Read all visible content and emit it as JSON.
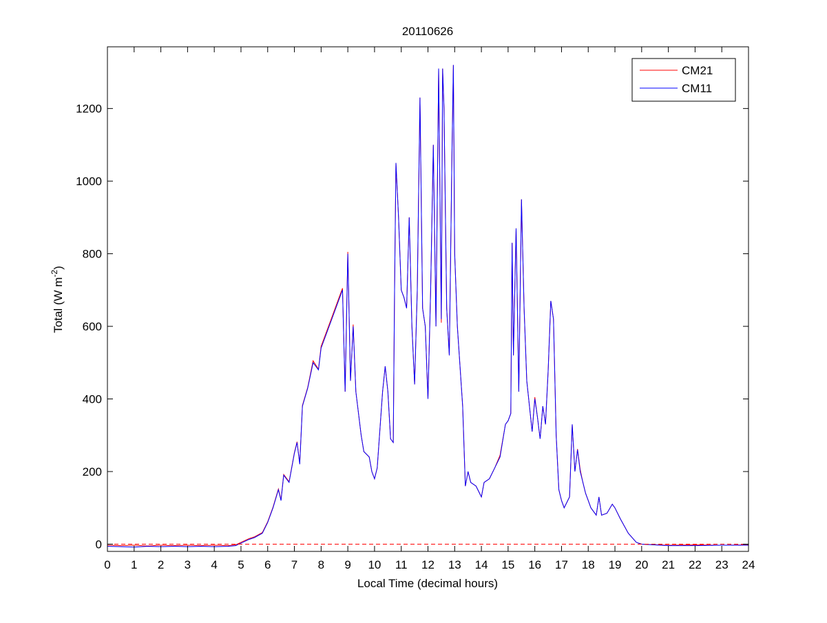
{
  "chart_data": {
    "type": "line",
    "title": "20110626",
    "xlabel": "Local Time (decimal hours)",
    "ylabel": "Total (W m",
    "ylabel_sup": "-2",
    "ylabel_end": ")",
    "xlim": [
      0,
      24
    ],
    "ylim": [
      -20,
      1370
    ],
    "xticks": [
      0,
      1,
      2,
      3,
      4,
      5,
      6,
      7,
      8,
      9,
      10,
      11,
      12,
      13,
      14,
      15,
      16,
      17,
      18,
      19,
      20,
      21,
      22,
      23,
      24
    ],
    "yticks": [
      0,
      200,
      400,
      600,
      800,
      1000,
      1200
    ],
    "grid": false,
    "legend_position": "top-right",
    "reference_line": {
      "y": 0,
      "style": "dashed",
      "color": "#ff0000"
    },
    "x": [
      0,
      0.5,
      1,
      1.5,
      2,
      2.5,
      3,
      3.5,
      4,
      4.5,
      4.8,
      5,
      5.3,
      5.5,
      5.8,
      6,
      6.2,
      6.4,
      6.5,
      6.6,
      6.8,
      7,
      7.1,
      7.2,
      7.3,
      7.5,
      7.7,
      7.9,
      8,
      8.2,
      8.4,
      8.6,
      8.8,
      8.9,
      9,
      9.1,
      9.2,
      9.3,
      9.5,
      9.6,
      9.8,
      9.9,
      10,
      10.1,
      10.3,
      10.4,
      10.5,
      10.6,
      10.7,
      10.75,
      10.8,
      10.9,
      11,
      11.1,
      11.2,
      11.3,
      11.4,
      11.5,
      11.6,
      11.7,
      11.8,
      11.9,
      12,
      12.1,
      12.2,
      12.3,
      12.4,
      12.5,
      12.55,
      12.6,
      12.7,
      12.8,
      12.9,
      12.95,
      13,
      13.1,
      13.3,
      13.4,
      13.5,
      13.6,
      13.8,
      14,
      14.1,
      14.3,
      14.5,
      14.7,
      14.9,
      15,
      15.1,
      15.15,
      15.2,
      15.3,
      15.4,
      15.5,
      15.6,
      15.7,
      15.9,
      16,
      16.1,
      16.2,
      16.3,
      16.4,
      16.5,
      16.6,
      16.7,
      16.8,
      16.9,
      17,
      17.1,
      17.3,
      17.4,
      17.5,
      17.6,
      17.7,
      17.8,
      17.9,
      18,
      18.1,
      18.3,
      18.4,
      18.5,
      18.7,
      18.9,
      19,
      19.2,
      19.5,
      19.8,
      20,
      21,
      22,
      23,
      24
    ],
    "series": [
      {
        "name": "CM21",
        "color": "#ff0000",
        "values": [
          -3,
          -4,
          -3,
          -5,
          -3,
          -4,
          -3,
          -4,
          -3,
          -4,
          -2,
          5,
          15,
          20,
          32,
          62,
          102,
          152,
          122,
          192,
          172,
          252,
          282,
          222,
          382,
          432,
          505,
          482,
          545,
          585,
          625,
          665,
          705,
          420,
          805,
          450,
          605,
          420,
          300,
          255,
          240,
          200,
          180,
          210,
          420,
          490,
          420,
          290,
          280,
          700,
          1050,
          900,
          700,
          680,
          650,
          900,
          600,
          440,
          700,
          1230,
          650,
          600,
          400,
          700,
          1100,
          600,
          1310,
          610,
          1310,
          1200,
          650,
          520,
          1080,
          1320,
          800,
          600,
          380,
          160,
          200,
          170,
          160,
          130,
          170,
          180,
          210,
          245,
          330,
          340,
          360,
          830,
          520,
          870,
          420,
          950,
          650,
          450,
          310,
          405,
          350,
          290,
          380,
          330,
          480,
          670,
          620,
          300,
          150,
          120,
          100,
          130,
          330,
          200,
          262,
          205,
          170,
          140,
          120,
          100,
          80,
          130,
          80,
          85,
          110,
          100,
          70,
          30,
          5,
          0,
          -3,
          -2,
          -3,
          -2
        ]
      },
      {
        "name": "CM11",
        "color": "#0000ff",
        "values": [
          -6,
          -7,
          -8,
          -6,
          -7,
          -6,
          -7,
          -6,
          -7,
          -6,
          -4,
          3,
          13,
          18,
          30,
          60,
          100,
          150,
          120,
          190,
          170,
          250,
          280,
          220,
          380,
          430,
          500,
          480,
          540,
          580,
          620,
          660,
          700,
          420,
          800,
          450,
          600,
          420,
          300,
          255,
          240,
          200,
          180,
          210,
          420,
          490,
          420,
          290,
          280,
          700,
          1050,
          900,
          700,
          680,
          650,
          900,
          600,
          440,
          700,
          1230,
          650,
          600,
          400,
          700,
          1100,
          600,
          1310,
          620,
          1310,
          1200,
          650,
          520,
          1080,
          1320,
          800,
          600,
          380,
          160,
          200,
          170,
          160,
          130,
          170,
          180,
          210,
          240,
          330,
          340,
          360,
          830,
          520,
          870,
          420,
          950,
          650,
          450,
          310,
          400,
          350,
          290,
          380,
          330,
          480,
          670,
          620,
          300,
          150,
          120,
          100,
          130,
          330,
          200,
          260,
          200,
          170,
          140,
          120,
          100,
          80,
          130,
          80,
          85,
          110,
          100,
          70,
          30,
          5,
          0,
          -4,
          -4,
          -3,
          -3
        ]
      }
    ]
  }
}
